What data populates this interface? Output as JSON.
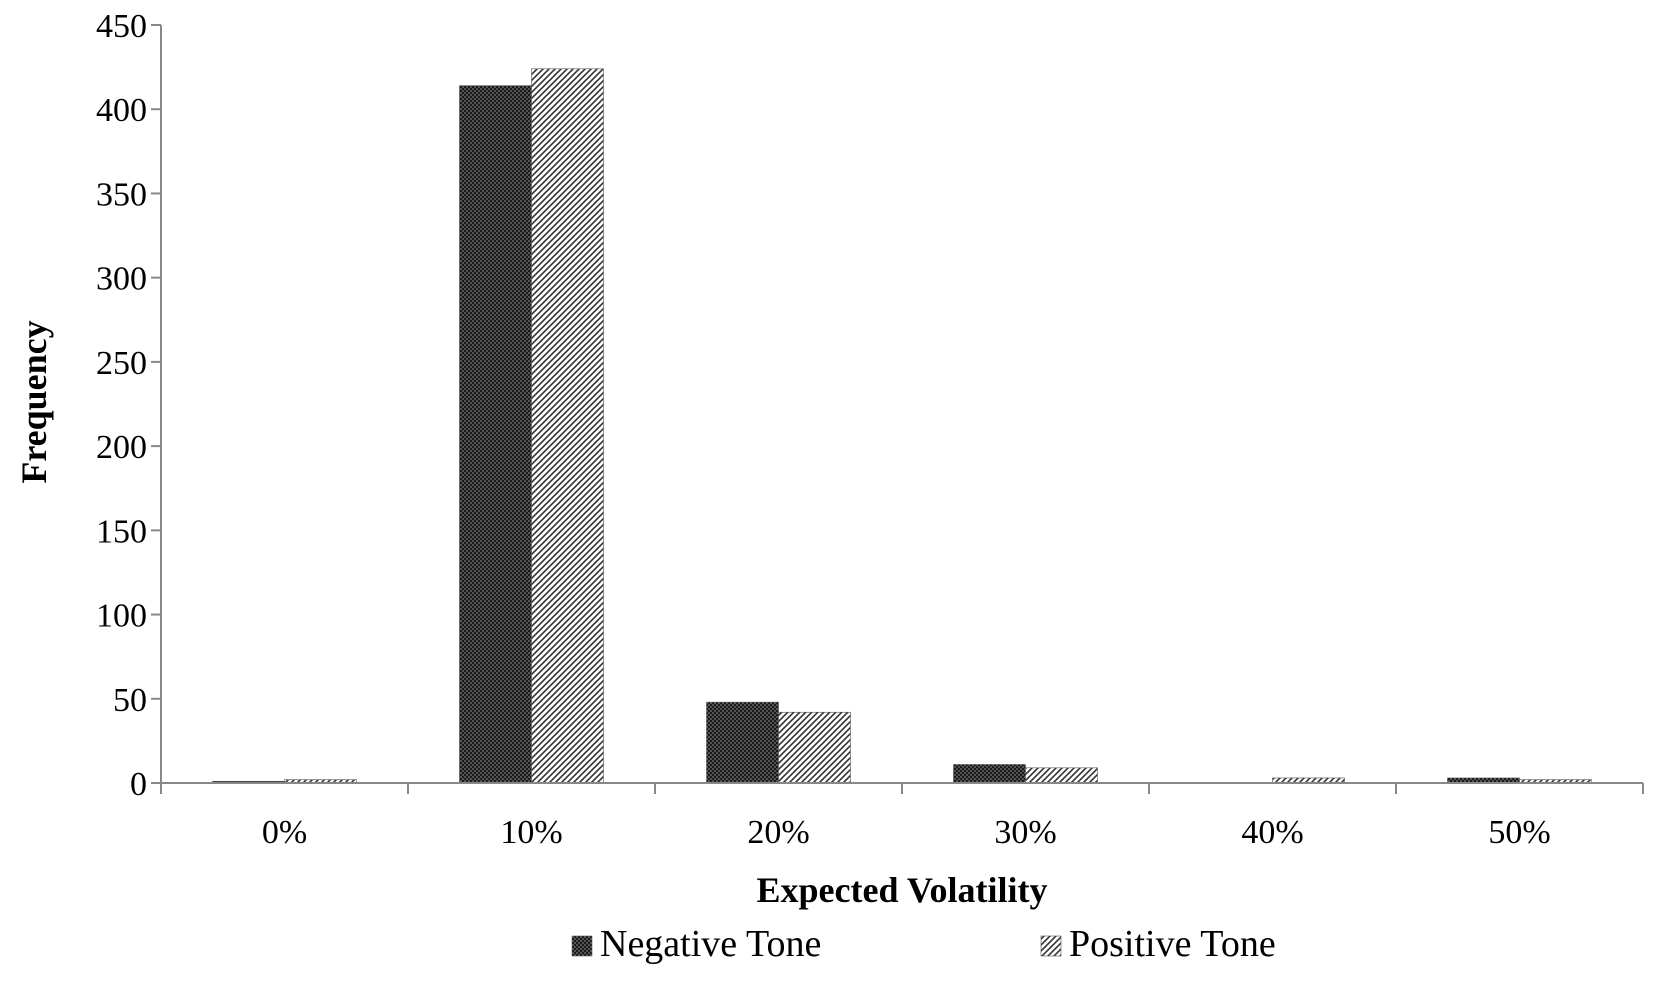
{
  "chart_data": {
    "type": "bar",
    "xlabel": "Expected Volatility",
    "ylabel": "Frequency",
    "categories": [
      "0%",
      "10%",
      "20%",
      "30%",
      "40%",
      "50%"
    ],
    "ylim": [
      0,
      450
    ],
    "yticks": [
      0,
      50,
      100,
      150,
      200,
      250,
      300,
      350,
      400,
      450
    ],
    "grid": false,
    "legend_position": "bottom",
    "series": [
      {
        "name": "Negative Tone",
        "values": [
          1,
          414,
          48,
          11,
          0,
          3
        ],
        "pattern": "dense-dots",
        "color": "#111111"
      },
      {
        "name": "Positive Tone",
        "values": [
          2,
          424,
          42,
          9,
          3,
          2
        ],
        "pattern": "diagonal-hatch",
        "color": "#555555"
      }
    ]
  }
}
